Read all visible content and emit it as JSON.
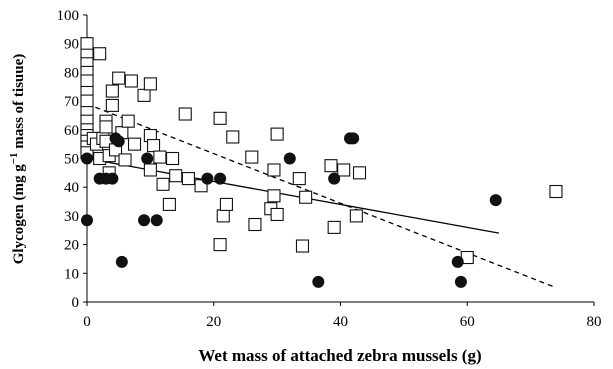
{
  "chart_data": {
    "type": "scatter",
    "xlabel": "Wet mass of attached zebra mussels (g)",
    "ylabel_parts": {
      "pre": "Glycogen (mg g",
      "sup": "−1",
      "post": " mass of tisuue)"
    },
    "xlim": [
      0,
      80
    ],
    "ylim": [
      0,
      100
    ],
    "xticks": [
      0,
      20,
      40,
      60,
      80
    ],
    "yticks": [
      0,
      10,
      20,
      30,
      40,
      50,
      60,
      70,
      80,
      90,
      100
    ],
    "grid": false,
    "legend": "none",
    "series": [
      {
        "marker": "filled-circle",
        "color": "#111111",
        "trend": {
          "style": "solid",
          "x": [
            0,
            65
          ],
          "y": [
            50,
            24
          ]
        },
        "points": [
          [
            0,
            50
          ],
          [
            0,
            28.5
          ],
          [
            2,
            43
          ],
          [
            3,
            43
          ],
          [
            4,
            43
          ],
          [
            4.5,
            57
          ],
          [
            5,
            56
          ],
          [
            5.5,
            14
          ],
          [
            9,
            28.5
          ],
          [
            9.5,
            50
          ],
          [
            11,
            28.5
          ],
          [
            19,
            43
          ],
          [
            21,
            43
          ],
          [
            32,
            50
          ],
          [
            36.5,
            7
          ],
          [
            39,
            43
          ],
          [
            41.5,
            57
          ],
          [
            42,
            57
          ],
          [
            58.5,
            14
          ],
          [
            59,
            7
          ],
          [
            64.5,
            35.5
          ]
        ]
      },
      {
        "marker": "open-square",
        "color": "#111111",
        "trend": {
          "style": "dashed",
          "x": [
            0,
            74
          ],
          "y": [
            69,
            5
          ]
        },
        "points": [
          [
            0,
            90
          ],
          [
            0,
            86
          ],
          [
            0,
            83
          ],
          [
            0,
            80
          ],
          [
            0,
            77
          ],
          [
            0,
            73
          ],
          [
            0,
            70
          ],
          [
            0,
            66
          ],
          [
            0,
            63
          ],
          [
            0,
            60
          ],
          [
            0,
            58
          ],
          [
            0,
            56
          ],
          [
            0,
            54
          ],
          [
            0,
            52
          ],
          [
            2,
            86.5
          ],
          [
            1,
            57
          ],
          [
            1.5,
            55
          ],
          [
            2,
            50
          ],
          [
            2.5,
            57
          ],
          [
            3,
            63
          ],
          [
            3,
            61
          ],
          [
            3,
            56
          ],
          [
            3.5,
            51
          ],
          [
            3.5,
            45
          ],
          [
            4,
            73.5
          ],
          [
            4,
            68.5
          ],
          [
            4.5,
            53
          ],
          [
            5,
            78
          ],
          [
            5.5,
            59
          ],
          [
            6,
            49.5
          ],
          [
            6.5,
            63
          ],
          [
            7,
            77
          ],
          [
            7.5,
            55
          ],
          [
            9,
            72
          ],
          [
            10,
            76
          ],
          [
            10,
            58
          ],
          [
            10.5,
            54.5
          ],
          [
            10,
            46
          ],
          [
            11.5,
            50.5
          ],
          [
            12,
            41
          ],
          [
            13,
            34
          ],
          [
            13.5,
            50
          ],
          [
            14,
            44
          ],
          [
            15.5,
            65.5
          ],
          [
            16,
            43
          ],
          [
            18,
            40.5
          ],
          [
            21,
            64
          ],
          [
            21,
            20
          ],
          [
            21.5,
            30
          ],
          [
            22,
            34
          ],
          [
            23,
            57.5
          ],
          [
            26,
            50.5
          ],
          [
            26.5,
            27
          ],
          [
            29,
            32.5
          ],
          [
            29.5,
            37
          ],
          [
            29.5,
            46
          ],
          [
            30,
            30.5
          ],
          [
            30,
            58.5
          ],
          [
            33.5,
            43
          ],
          [
            34,
            19.5
          ],
          [
            34.5,
            36.5
          ],
          [
            38.5,
            47.5
          ],
          [
            39,
            26
          ],
          [
            40.5,
            46
          ],
          [
            42.5,
            30
          ],
          [
            43,
            45
          ],
          [
            60,
            15.5
          ],
          [
            74,
            38.5
          ]
        ]
      }
    ]
  }
}
